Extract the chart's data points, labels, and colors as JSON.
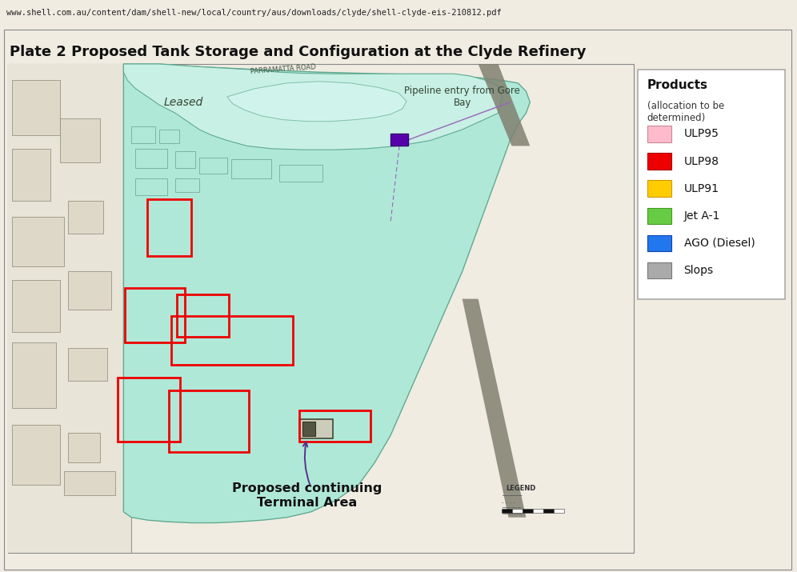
{
  "title": "Plate 2 Proposed Tank Storage and Configuration at the Clyde Refinery",
  "url_text": "www.shell.com.au/content/dam/shell-new/local/country/aus/downloads/clyde/shell-clyde-eis-210812.pdf",
  "bg_outer": "#f0ece2",
  "bg_page": "#f5f2ea",
  "map_teal": "#b0e8d8",
  "map_teal_light": "#c8f0e4",
  "map_teal_dark": "#90c8b8",
  "left_area_bg": "#e8e4d8",
  "legend_bg": "#ffffff",
  "legend_border": "#aaaaaa",
  "road_color": "#888878",
  "purple_marker": "#5500aa",
  "red_box_color": "#ee0000",
  "text_dark": "#111111",
  "text_mid": "#444444",
  "text_gray": "#666666",
  "url_bg": "#f8f8f8",
  "legend_items": [
    {
      "label": "ULP95",
      "color": "#ffbbcc",
      "border": "#cc8899"
    },
    {
      "label": "ULP98",
      "color": "#ee0000",
      "border": "#aa0000"
    },
    {
      "label": "ULP91",
      "color": "#ffcc00",
      "border": "#cc9900"
    },
    {
      "label": "Jet A-1",
      "color": "#66cc44",
      "border": "#449922"
    },
    {
      "label": "AGO (Diesel)",
      "color": "#2277ee",
      "border": "#1144aa"
    },
    {
      "label": "Slops",
      "color": "#aaaaaa",
      "border": "#777777"
    }
  ],
  "map_region": [
    0.01,
    0.035,
    0.785,
    0.895
  ],
  "legend_region": [
    0.8,
    0.5,
    0.185,
    0.42
  ],
  "page_border": [
    0.005,
    0.005,
    0.988,
    0.988
  ]
}
